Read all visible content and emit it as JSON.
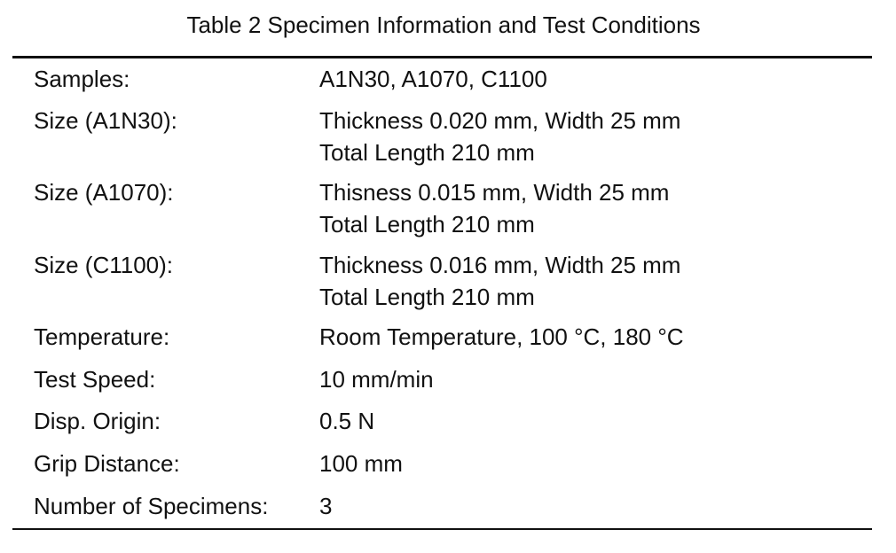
{
  "title": "Table 2 Specimen Information and Test Conditions",
  "rows": [
    {
      "label": "Samples:",
      "lines": [
        "A1N30, A1070, C1100"
      ]
    },
    {
      "label": "Size (A1N30):",
      "lines": [
        "Thickness 0.020 mm, Width 25 mm",
        "Total Length 210 mm"
      ]
    },
    {
      "label": "Size (A1070):",
      "lines": [
        "Thisness 0.015 mm, Width 25 mm",
        "Total Length 210 mm"
      ]
    },
    {
      "label": "Size (C1100):",
      "lines": [
        "Thickness 0.016 mm, Width 25 mm",
        "Total Length 210 mm"
      ]
    },
    {
      "label": "Temperature:",
      "lines": [
        "Room Temperature, 100 °C, 180 °C"
      ]
    },
    {
      "label": "Test Speed:",
      "lines": [
        "10 mm/min"
      ]
    },
    {
      "label": "Disp. Origin:",
      "lines": [
        "0.5 N"
      ]
    },
    {
      "label": "Grip Distance:",
      "lines": [
        "100 mm"
      ]
    },
    {
      "label": "Number of Specimens:",
      "lines": [
        "3"
      ]
    }
  ]
}
